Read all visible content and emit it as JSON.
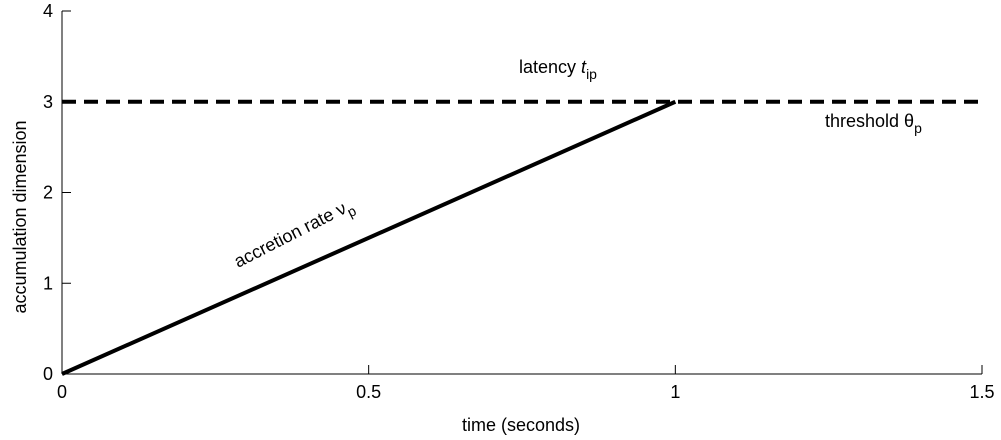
{
  "chart_data": {
    "type": "line",
    "title": "",
    "xlabel": "time (seconds)",
    "ylabel": "accumulation dimension",
    "xlim": [
      0,
      1.5
    ],
    "ylim": [
      0,
      4
    ],
    "xticks": [
      0,
      0.5,
      1,
      1.5
    ],
    "xtick_labels": [
      "0",
      "0.5",
      "1",
      "1.5"
    ],
    "yticks": [
      0,
      1,
      2,
      3,
      4
    ],
    "ytick_labels": [
      "0",
      "1",
      "2",
      "3",
      "4"
    ],
    "grid": false,
    "series": [
      {
        "style": "solid",
        "color": "#000000",
        "x": [
          0,
          1
        ],
        "y": [
          0,
          3
        ]
      },
      {
        "style": "dashed",
        "color": "#000000",
        "x": [
          0,
          1.5
        ],
        "y": [
          3,
          3
        ]
      }
    ],
    "annotations": {
      "accretion": {
        "text": "accretion rate ν",
        "sub": "p"
      },
      "latency": {
        "text": "latency ",
        "italic": "t",
        "sub": "ip"
      },
      "threshold": {
        "text": "threshold θ",
        "sub": "p"
      }
    }
  }
}
